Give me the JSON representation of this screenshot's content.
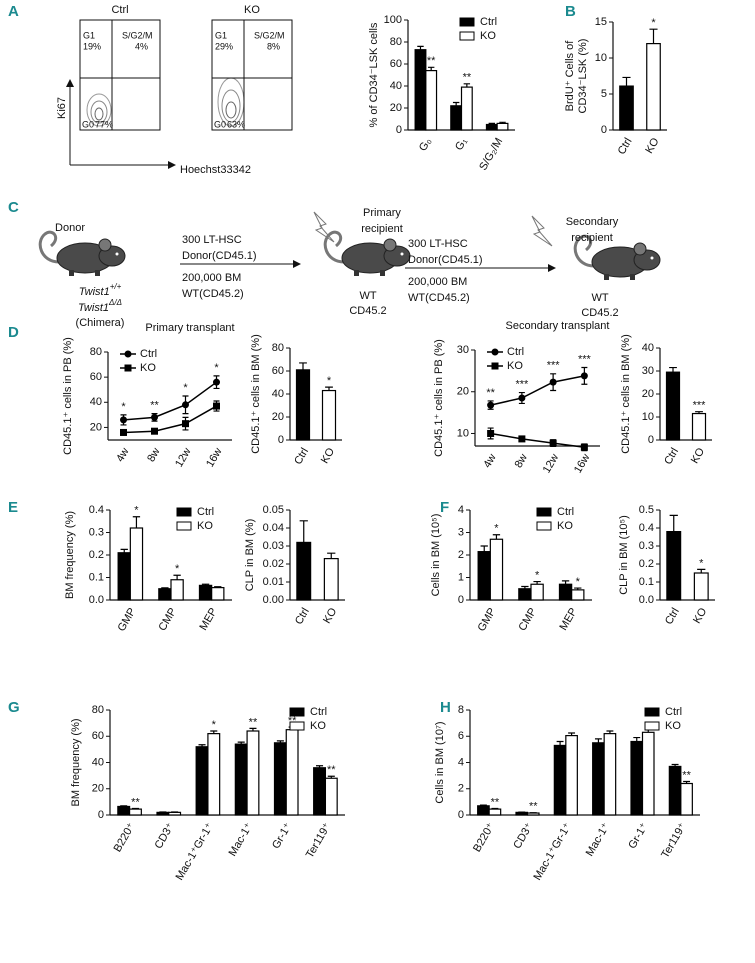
{
  "panel_labels": [
    "A",
    "B",
    "C",
    "D",
    "E",
    "F",
    "G",
    "H"
  ],
  "flow": {
    "axis_y": "Ki67",
    "axis_x": "Hoechst33342",
    "plots": [
      {
        "title": "Ctrl",
        "gates": [
          {
            "name": "G1",
            "pct": "19%"
          },
          {
            "name": "S/G2/M",
            "pct": "4%"
          },
          {
            "name": "G0",
            "pct": "77%"
          }
        ]
      },
      {
        "title": "KO",
        "gates": [
          {
            "name": "G1",
            "pct": "29%"
          },
          {
            "name": "S/G2/M",
            "pct": "8%"
          },
          {
            "name": "G0",
            "pct": "63%"
          }
        ]
      }
    ]
  },
  "diagram": {
    "donor": "Donor",
    "donor_genotypes": [
      {
        "gene": "Twist1",
        "genotype": "+/+"
      },
      {
        "gene": "Twist1",
        "genotype": "Δ/Δ"
      }
    ],
    "donor_note": "(Chimera)",
    "transfers": [
      {
        "lines": [
          "300 LT-HSC",
          "Donor(CD45.1)",
          "200,000 BM",
          "WT(CD45.2)"
        ]
      },
      {
        "lines": [
          "300 LT-HSC",
          "Donor(CD45.1)",
          "200,000 BM",
          "WT(CD45.2)"
        ]
      }
    ],
    "recipients": [
      {
        "title": [
          "Primary",
          "recipient"
        ],
        "strain": [
          "WT",
          "CD45.2"
        ]
      },
      {
        "title": [
          "Secondary",
          "recipient"
        ],
        "strain": [
          "WT",
          "CD45.2"
        ]
      }
    ]
  },
  "chart_data": [
    {
      "type": "bar",
      "ylabel": "% of CD34⁻LSK cells",
      "categories": [
        "G₀",
        "G₁",
        "S/G₂/M"
      ],
      "series": [
        {
          "name": "Ctrl",
          "color": "#000000",
          "values": [
            73,
            22,
            5
          ],
          "errors": [
            3,
            3,
            1
          ]
        },
        {
          "name": "KO",
          "color": "#ffffff",
          "values": [
            54,
            39,
            6
          ],
          "errors": [
            3,
            3,
            1
          ],
          "labels": [
            "**",
            "**",
            null
          ]
        }
      ],
      "ylim": [
        0,
        100
      ],
      "yticks": [
        0,
        20,
        40,
        60,
        80,
        100
      ],
      "legend": "top-right"
    },
    {
      "type": "bar",
      "ylabel": [
        "BrdU⁺ Cells of",
        "CD34⁻LSK (%)"
      ],
      "categories": [
        "Ctrl",
        "KO"
      ],
      "values": [
        6.1,
        12
      ],
      "errors": [
        1.2,
        2
      ],
      "colors": [
        "#000000",
        "#ffffff"
      ],
      "labels": [
        null,
        "*"
      ],
      "ylim": [
        0,
        15
      ],
      "yticks": [
        0,
        5,
        10,
        15
      ]
    },
    {
      "type": "line",
      "title": "Primary transplant",
      "ylabel": "CD45.1⁺ cells in PB (%)",
      "categories": [
        "4w",
        "8w",
        "12w",
        "16w"
      ],
      "series": [
        {
          "name": "Ctrl",
          "color": "#000000",
          "marker": "circle",
          "values": [
            26,
            28,
            38,
            56
          ],
          "errors": [
            4,
            3,
            7,
            5
          ],
          "labels": [
            "*",
            "**",
            "*",
            "*"
          ]
        },
        {
          "name": "KO",
          "color": "#000000",
          "marker": "square",
          "values": [
            16,
            17,
            23,
            37
          ],
          "errors": [
            2,
            2,
            5,
            4
          ]
        }
      ],
      "ylim": [
        10,
        80
      ],
      "yticks": [
        20,
        40,
        60,
        80
      ],
      "legend": "top-left"
    },
    {
      "type": "bar",
      "ylabel": "CD45.1⁺ cells in BM (%)",
      "categories": [
        "Ctrl",
        "KO"
      ],
      "values": [
        61,
        43
      ],
      "errors": [
        6,
        3
      ],
      "colors": [
        "#000000",
        "#ffffff"
      ],
      "labels": [
        null,
        "*"
      ],
      "ylim": [
        0,
        80
      ],
      "yticks": [
        0,
        20,
        40,
        60,
        80
      ]
    },
    {
      "type": "line",
      "title": "Secondary transplant",
      "ylabel": "CD45.1⁺ cells in PB (%)",
      "categories": [
        "4w",
        "8w",
        "12w",
        "16w"
      ],
      "series": [
        {
          "name": "Ctrl",
          "color": "#000000",
          "marker": "circle",
          "values": [
            16.8,
            18.5,
            22.3,
            23.8
          ],
          "errors": [
            1,
            1.3,
            2,
            2
          ],
          "labels": [
            "**",
            "***",
            "***",
            "***"
          ]
        },
        {
          "name": "KO",
          "color": "#000000",
          "marker": "square",
          "values": [
            10,
            8.7,
            7.7,
            6.7
          ],
          "errors": [
            1.3,
            0.5,
            0.8,
            0.8
          ]
        }
      ],
      "ylim": [
        7,
        30
      ],
      "yticks": [
        10,
        20,
        30
      ],
      "legend": "top-left"
    },
    {
      "type": "bar",
      "ylabel": "CD45.1⁺ cells in BM (%)",
      "categories": [
        "Ctrl",
        "KO"
      ],
      "values": [
        29.5,
        11.5
      ],
      "errors": [
        2,
        0.8
      ],
      "colors": [
        "#000000",
        "#ffffff"
      ],
      "labels": [
        null,
        "***"
      ],
      "ylim": [
        0,
        40
      ],
      "yticks": [
        0,
        10,
        20,
        30,
        40
      ]
    },
    {
      "type": "bar",
      "ylabel": "BM frequency (%)",
      "categories": [
        "GMP",
        "CMP",
        "MEP"
      ],
      "series": [
        {
          "name": "Ctrl",
          "color": "#000000",
          "values": [
            0.21,
            0.05,
            0.065
          ],
          "errors": [
            0.015,
            0.004,
            0.005
          ]
        },
        {
          "name": "KO",
          "color": "#ffffff",
          "values": [
            0.32,
            0.09,
            0.055
          ],
          "errors": [
            0.05,
            0.02,
            0.004
          ],
          "labels": [
            "*",
            "*",
            null
          ]
        }
      ],
      "ylim": [
        0,
        0.4
      ],
      "yticks": [
        {
          "value": 0,
          "label": "0.0"
        },
        0.1,
        0.2,
        0.3,
        0.4
      ],
      "legend": "top-right"
    },
    {
      "type": "bar",
      "ylabel": "CLP in BM (%)",
      "categories": [
        "Ctrl",
        "KO"
      ],
      "values": [
        0.032,
        0.023
      ],
      "errors": [
        0.012,
        0.003
      ],
      "colors": [
        "#000000",
        "#ffffff"
      ],
      "ylim": [
        0,
        0.05
      ],
      "yticks": [
        {
          "value": 0,
          "label": "0.00"
        },
        0.01,
        0.02,
        0.03,
        0.04,
        0.05
      ]
    },
    {
      "type": "bar",
      "ylabel": "Cells in BM (10⁵)",
      "categories": [
        "GMP",
        "CMP",
        "MEP"
      ],
      "series": [
        {
          "name": "Ctrl",
          "color": "#000000",
          "values": [
            2.15,
            0.5,
            0.7
          ],
          "errors": [
            0.25,
            0.1,
            0.15
          ]
        },
        {
          "name": "KO",
          "color": "#ffffff",
          "values": [
            2.7,
            0.7,
            0.45
          ],
          "errors": [
            0.2,
            0.12,
            0.08
          ],
          "labels": [
            "*",
            "*",
            "*"
          ]
        }
      ],
      "ylim": [
        0,
        4
      ],
      "yticks": [
        0,
        1,
        2,
        3,
        4
      ],
      "legend": "top-right"
    },
    {
      "type": "bar",
      "ylabel": "CLP in BM (10⁵)",
      "categories": [
        "Ctrl",
        "KO"
      ],
      "values": [
        0.38,
        0.15
      ],
      "errors": [
        0.09,
        0.02
      ],
      "colors": [
        "#000000",
        "#ffffff"
      ],
      "labels": [
        null,
        "*"
      ],
      "ylim": [
        0,
        0.5
      ],
      "yticks": [
        {
          "value": 0,
          "label": "0.0"
        },
        0.1,
        0.2,
        0.3,
        0.4,
        0.5
      ]
    },
    {
      "type": "bar",
      "ylabel": "BM frequency (%)",
      "categories": [
        "B220⁺",
        "CD3⁺",
        "Mac-1⁺Gr-1⁺",
        "Mac-1⁺",
        "Gr-1⁺",
        "Ter119⁺"
      ],
      "series": [
        {
          "name": "Ctrl",
          "color": "#000000",
          "values": [
            6.5,
            2,
            52,
            54,
            55,
            36
          ],
          "errors": [
            0.5,
            0.3,
            1.5,
            1.5,
            1.5,
            1.5
          ]
        },
        {
          "name": "KO",
          "color": "#ffffff",
          "values": [
            4.5,
            2,
            62,
            64,
            65,
            28
          ],
          "errors": [
            0.5,
            0.3,
            2,
            2,
            2,
            1.5
          ],
          "labels": [
            "**",
            null,
            "*",
            "**",
            "**",
            "**"
          ]
        }
      ],
      "ylim": [
        0,
        80
      ],
      "yticks": [
        0,
        20,
        40,
        60,
        80
      ],
      "legend": "top-right"
    },
    {
      "type": "bar",
      "ylabel": "Cells in BM (10⁷)",
      "categories": [
        "B220⁺",
        "CD3⁺",
        "Mac-1⁺Gr-1⁺",
        "Mac-1⁺",
        "Gr-1⁺",
        "Ter119⁺"
      ],
      "series": [
        {
          "name": "Ctrl",
          "color": "#000000",
          "values": [
            0.7,
            0.2,
            5.3,
            5.5,
            5.6,
            3.7
          ],
          "errors": [
            0.05,
            0.02,
            0.3,
            0.3,
            0.3,
            0.15
          ]
        },
        {
          "name": "KO",
          "color": "#ffffff",
          "values": [
            0.45,
            0.15,
            6.05,
            6.2,
            6.3,
            2.4
          ],
          "errors": [
            0.05,
            0.02,
            0.2,
            0.2,
            0.2,
            0.15
          ],
          "labels": [
            "**",
            "**",
            null,
            null,
            null,
            "**"
          ]
        }
      ],
      "ylim": [
        0,
        8
      ],
      "yticks": [
        0,
        2,
        4,
        6,
        8
      ],
      "legend": "top-right"
    }
  ]
}
